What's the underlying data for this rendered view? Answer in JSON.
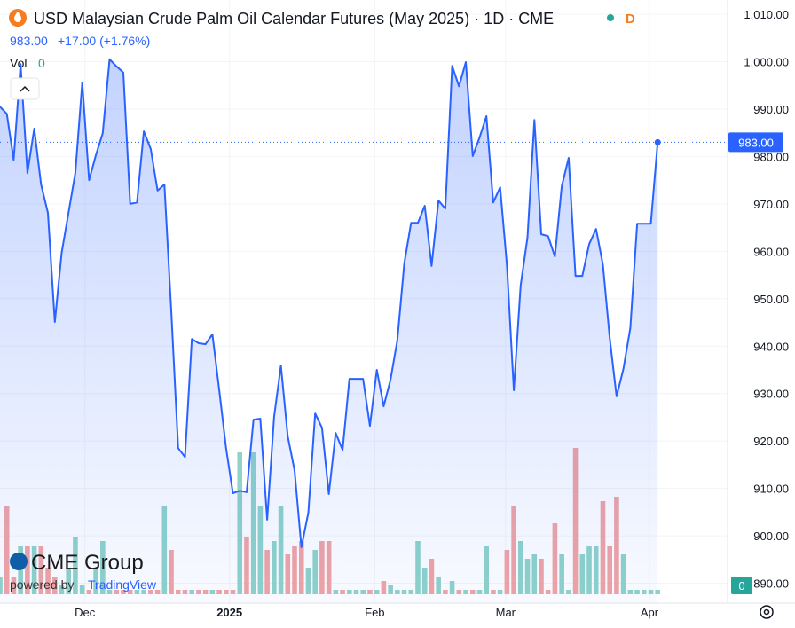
{
  "chart_data": {
    "type": "area",
    "header": {
      "title": "USD Malaysian Crude Palm Oil Calendar Futures (May 2025) · 1D · CME",
      "flag": "D",
      "price": "983.00",
      "change": "+17.00 (+1.76%)",
      "vol_label": "Vol",
      "vol_value": "0"
    },
    "logo": {
      "brand": "CME Group",
      "powered": "powered by",
      "platform": "TradingView"
    },
    "volume_badge": "0",
    "x": [
      0,
      1,
      2,
      3,
      4,
      5,
      6,
      7,
      8,
      9,
      10,
      11,
      12,
      13,
      14,
      15,
      16,
      17,
      18,
      19,
      20,
      21,
      22,
      23,
      24,
      25,
      26,
      27,
      28,
      29,
      30,
      31,
      32,
      33,
      34,
      35,
      36,
      37,
      38,
      39,
      40,
      41,
      42,
      43,
      44,
      45,
      46,
      47,
      48,
      49,
      50,
      51,
      52,
      53,
      54,
      55,
      56,
      57,
      58,
      59,
      60,
      61,
      62,
      63,
      64,
      65,
      66,
      67,
      68,
      69,
      70,
      71,
      72,
      73,
      74,
      75,
      76,
      77,
      78,
      79,
      80,
      81,
      82,
      83,
      84,
      85,
      86,
      87,
      88,
      89,
      90,
      91,
      92,
      93,
      94,
      95,
      96
    ],
    "series": [
      {
        "name": "Price",
        "color": "#2962ff",
        "values": [
          990.5,
          989,
          979.3,
          999.5,
          976.5,
          985.9,
          974.1,
          968.1,
          945.1,
          959.7,
          968.1,
          976.5,
          995.6,
          975,
          980.3,
          984.9,
          1000.5,
          999,
          997.7,
          970,
          970.3,
          985.3,
          981.6,
          972.8,
          974.1,
          947.5,
          918.5,
          916.6,
          941.5,
          940.6,
          940.4,
          942.5,
          930.7,
          918.5,
          909,
          909.5,
          909.2,
          924.5,
          924.7,
          903.4,
          925.1,
          935.9,
          921,
          913.8,
          897.6,
          904.9,
          925.8,
          922.8,
          908.8,
          921.7,
          918.1,
          933.1,
          933.1,
          933.1,
          923.2,
          935,
          927.3,
          932.9,
          941.2,
          957.4,
          966,
          966,
          969.6,
          956.9,
          970.7,
          969,
          999.1,
          994.8,
          999.9,
          980.1,
          984,
          988.5,
          970.3,
          973.5,
          956.9,
          930.7,
          952.8,
          962.9,
          987.7,
          963.6,
          963.2,
          958.9,
          973.7,
          979.7,
          954.8,
          954.8,
          961.5,
          964.7,
          957.2,
          941.7,
          929.4,
          935.2,
          943.8,
          965.8,
          965.8,
          965.8,
          983
        ]
      },
      {
        "name": "Vol",
        "axis": "volume",
        "up_color": "#8fd3c9",
        "down_color": "#f2a4a4",
        "values": [
          20,
          100,
          20,
          55,
          55,
          55,
          55,
          30,
          20,
          10,
          30,
          65,
          10,
          5,
          30,
          60,
          5,
          5,
          5,
          5,
          5,
          5,
          5,
          5,
          100,
          50,
          5,
          5,
          5,
          5,
          5,
          5,
          5,
          5,
          5,
          160,
          65,
          160,
          100,
          50,
          60,
          100,
          45,
          55,
          60,
          30,
          50,
          60,
          60,
          5,
          5,
          5,
          5,
          5,
          5,
          5,
          15,
          10,
          5,
          5,
          5,
          60,
          30,
          40,
          20,
          5,
          15,
          5,
          5,
          5,
          5,
          55,
          5,
          5,
          50,
          100,
          60,
          40,
          45,
          40,
          5,
          80,
          45,
          5,
          165,
          45,
          55,
          55,
          105,
          55,
          110,
          45,
          5,
          5,
          5,
          5,
          5
        ]
      }
    ],
    "xlim": [
      0,
      106.2
    ],
    "xticks": [
      {
        "value": 12.4,
        "label": "Dec"
      },
      {
        "value": 33.5,
        "label": "2025"
      },
      {
        "value": 54.7,
        "label": "Feb"
      },
      {
        "value": 73.8,
        "label": "Mar"
      },
      {
        "value": 94.8,
        "label": "Apr"
      }
    ],
    "ylim": [
      885.8,
      1013.0
    ],
    "yticks": [
      {
        "value": 890,
        "label": "890.00"
      },
      {
        "value": 900,
        "label": "900.00"
      },
      {
        "value": 910,
        "label": "910.00"
      },
      {
        "value": 920,
        "label": "920.00"
      },
      {
        "value": 930,
        "label": "930.00"
      },
      {
        "value": 940,
        "label": "940.00"
      },
      {
        "value": 950,
        "label": "950.00"
      },
      {
        "value": 960,
        "label": "960.00"
      },
      {
        "value": 970,
        "label": "970.00"
      },
      {
        "value": 980,
        "label": "980.00"
      },
      {
        "value": 990,
        "label": "990.00"
      },
      {
        "value": 1000,
        "label": "1,000.00"
      },
      {
        "value": 1010,
        "label": "1,010.00"
      }
    ],
    "volume_lim": [
      0,
      200
    ],
    "grid": true
  }
}
